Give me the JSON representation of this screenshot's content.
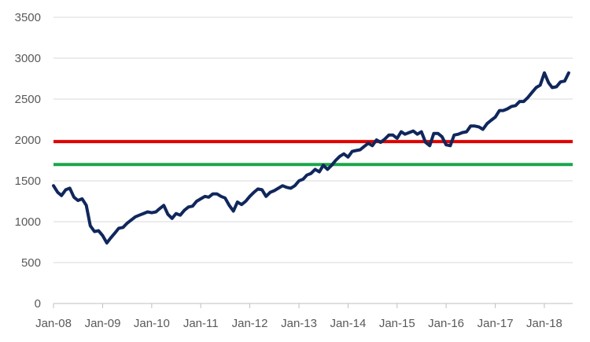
{
  "chart_data": {
    "type": "line",
    "title": "",
    "xlabel": "",
    "ylabel": "",
    "x_ticks": [
      "Jan-08",
      "Jan-09",
      "Jan-10",
      "Jan-11",
      "Jan-12",
      "Jan-13",
      "Jan-14",
      "Jan-15",
      "Jan-16",
      "Jan-17",
      "Jan-18"
    ],
    "xlim": [
      "2008-01-01",
      "2018-07-31"
    ],
    "ylim": [
      0,
      3500
    ],
    "y_ticks": [
      0,
      500,
      1000,
      1500,
      2000,
      2500,
      3000,
      3500
    ],
    "grid": "horizontal",
    "series": [
      {
        "color": "#10275c",
        "x": [
          "2008-01",
          "2008-02",
          "2008-03",
          "2008-04",
          "2008-05",
          "2008-06",
          "2008-07",
          "2008-08",
          "2008-09",
          "2008-10",
          "2008-11",
          "2008-12",
          "2009-01",
          "2009-02",
          "2009-03",
          "2009-04",
          "2009-05",
          "2009-06",
          "2009-07",
          "2009-08",
          "2009-09",
          "2009-10",
          "2009-11",
          "2009-12",
          "2010-01",
          "2010-02",
          "2010-03",
          "2010-04",
          "2010-05",
          "2010-06",
          "2010-07",
          "2010-08",
          "2010-09",
          "2010-10",
          "2010-11",
          "2010-12",
          "2011-01",
          "2011-02",
          "2011-03",
          "2011-04",
          "2011-05",
          "2011-06",
          "2011-07",
          "2011-08",
          "2011-09",
          "2011-10",
          "2011-11",
          "2011-12",
          "2012-01",
          "2012-02",
          "2012-03",
          "2012-04",
          "2012-05",
          "2012-06",
          "2012-07",
          "2012-08",
          "2012-09",
          "2012-10",
          "2012-11",
          "2012-12",
          "2013-01",
          "2013-02",
          "2013-03",
          "2013-04",
          "2013-05",
          "2013-06",
          "2013-07",
          "2013-08",
          "2013-09",
          "2013-10",
          "2013-11",
          "2013-12",
          "2014-01",
          "2014-02",
          "2014-03",
          "2014-04",
          "2014-05",
          "2014-06",
          "2014-07",
          "2014-08",
          "2014-09",
          "2014-10",
          "2014-11",
          "2014-12",
          "2015-01",
          "2015-02",
          "2015-03",
          "2015-04",
          "2015-05",
          "2015-06",
          "2015-07",
          "2015-08",
          "2015-09",
          "2015-10",
          "2015-11",
          "2015-12",
          "2016-01",
          "2016-02",
          "2016-03",
          "2016-04",
          "2016-05",
          "2016-06",
          "2016-07",
          "2016-08",
          "2016-09",
          "2016-10",
          "2016-11",
          "2016-12",
          "2017-01",
          "2017-02",
          "2017-03",
          "2017-04",
          "2017-05",
          "2017-06",
          "2017-07",
          "2017-08",
          "2017-09",
          "2017-10",
          "2017-11",
          "2017-12",
          "2018-01",
          "2018-02",
          "2018-03",
          "2018-04",
          "2018-05",
          "2018-06",
          "2018-07"
        ],
        "y": [
          1440,
          1360,
          1320,
          1390,
          1410,
          1300,
          1260,
          1280,
          1200,
          950,
          880,
          890,
          830,
          740,
          800,
          860,
          920,
          930,
          980,
          1020,
          1060,
          1080,
          1100,
          1120,
          1110,
          1120,
          1160,
          1200,
          1090,
          1040,
          1100,
          1080,
          1140,
          1180,
          1190,
          1250,
          1280,
          1310,
          1300,
          1340,
          1340,
          1310,
          1290,
          1200,
          1130,
          1240,
          1210,
          1250,
          1310,
          1360,
          1400,
          1390,
          1310,
          1360,
          1380,
          1410,
          1440,
          1420,
          1410,
          1440,
          1500,
          1520,
          1570,
          1590,
          1640,
          1610,
          1690,
          1640,
          1690,
          1750,
          1800,
          1830,
          1790,
          1860,
          1870,
          1880,
          1920,
          1960,
          1930,
          2000,
          1970,
          2010,
          2060,
          2060,
          2020,
          2100,
          2070,
          2090,
          2110,
          2070,
          2100,
          1970,
          1930,
          2080,
          2080,
          2040,
          1940,
          1930,
          2060,
          2070,
          2090,
          2100,
          2170,
          2170,
          2160,
          2130,
          2200,
          2240,
          2280,
          2360,
          2360,
          2380,
          2410,
          2420,
          2470,
          2470,
          2520,
          2580,
          2640,
          2670,
          2820,
          2700,
          2640,
          2650,
          2710,
          2720,
          2820
        ]
      }
    ],
    "reference_lines": [
      {
        "value": 1980,
        "color": "#e00000"
      },
      {
        "value": 1700,
        "color": "#1aa64a"
      }
    ]
  }
}
